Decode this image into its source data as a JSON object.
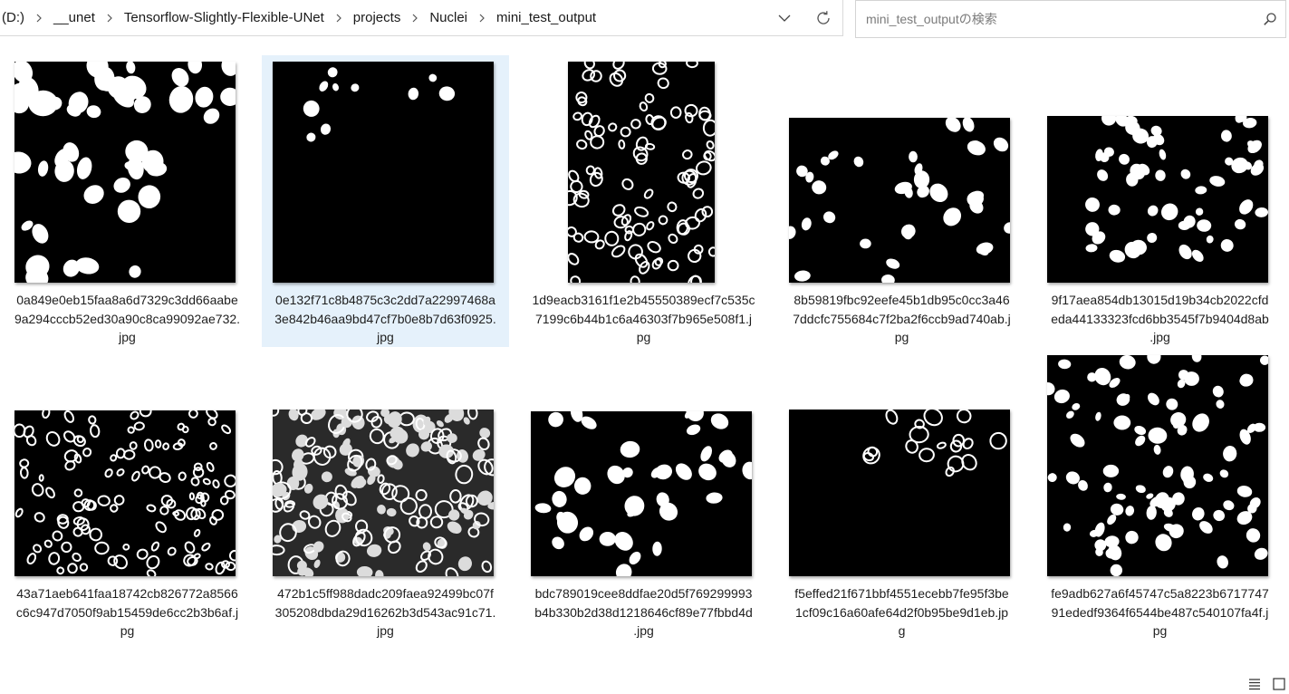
{
  "breadcrumb": {
    "items": [
      "(D:)",
      "__unet",
      "Tensorflow-Slightly-Flexible-UNet",
      "projects",
      "Nuclei",
      "mini_test_output"
    ]
  },
  "search": {
    "placeholder": "mini_test_outputの検索"
  },
  "files": [
    {
      "name": "0a849e0eb15faa8a6d7329c3dd66aabe9a294cccb52ed30a90c8ca99092ae732.jpg",
      "caption": [
        "0a849e0eb15faa8a6d7329c3dd66aabe",
        "9a294cccb52ed30a90c8ca99092ae732.",
        "jpg"
      ],
      "selected": false
    },
    {
      "name": "0e132f71c8b4875c3c2dd7a22997468a3e842b46aa9bd47cf7b0e8b7d63f0925.jpg",
      "caption": [
        "0e132f71c8b4875c3c2dd7a22997468a",
        "3e842b46aa9bd47cf7b0e8b7d63f0925.",
        "jpg"
      ],
      "selected": true
    },
    {
      "name": "1d9eacb3161f1e2b45550389ecf7c535c7199c6b44b1c6a46303f7b965e508f1.jpg",
      "caption": [
        "1d9eacb3161f1e2b45550389ecf7c535c",
        "7199c6b44b1c6a46303f7b965e508f1.j",
        "pg"
      ],
      "selected": false
    },
    {
      "name": "8b59819fbc92eefe45b1db95c0cc3a467ddcfc755684c7f2ba2f6ccb9ad740ab.jpg",
      "caption": [
        "8b59819fbc92eefe45b1db95c0cc3a46",
        "7ddcfc755684c7f2ba2f6ccb9ad740ab.j",
        "pg"
      ],
      "selected": false
    },
    {
      "name": "9f17aea854db13015d19b34cb2022cfdeda44133323fcd6bb3545f7b9404d8ab.jpg",
      "caption": [
        "9f17aea854db13015d19b34cb2022cfd",
        "eda44133323fcd6bb3545f7b9404d8ab",
        ".jpg"
      ],
      "selected": false
    },
    {
      "name": "43a71aeb641faa18742cb826772a8566c6c947d7050f9ab15459de6cc2b3b6af.jpg",
      "caption": [
        "43a71aeb641faa18742cb826772a8566",
        "c6c947d7050f9ab15459de6cc2b3b6af.j",
        "pg"
      ],
      "selected": false
    },
    {
      "name": "472b1c5ff988dadc209faea92499bc07f305208dbda29d16262b3d543ac91c71.jpg",
      "caption": [
        "472b1c5ff988dadc209faea92499bc07f",
        "305208dbda29d16262b3d543ac91c71.",
        "jpg"
      ],
      "selected": false
    },
    {
      "name": "bdc789019cee8ddfae20d5f769299993b4b330b2d38d1218646cf89e77fbbd4d.jpg",
      "caption": [
        "bdc789019cee8ddfae20d5f769299993",
        "b4b330b2d38d1218646cf89e77fbbd4d",
        ".jpg"
      ],
      "selected": false
    },
    {
      "name": "f5effed21f671bbf4551ecebb7fe95f3be1cf09c16a60afe64d2f0b95be9d1eb.jpg",
      "caption": [
        "f5effed21f671bbf4551ecebb7fe95f3be",
        "1cf09c16a60afe64d2f0b95be9d1eb.jp",
        "g"
      ],
      "selected": false
    },
    {
      "name": "fe9adb627a6f45747c5a8223b671774791ededf9364f6544be487c540107fa4f.jpg",
      "caption": [
        "fe9adb627a6f45747c5a8223b6717747",
        "91ededf9364f6544be487c540107fa4f.j",
        "pg"
      ],
      "selected": false
    }
  ],
  "colors": {
    "selection": "#e5f1fb",
    "thumbnail_background": "#000000",
    "nucleus": "#ffffff"
  },
  "icons": {
    "breadcrumb_separator": "chevron-right-icon",
    "history_dropdown": "chevron-down-icon",
    "refresh": "refresh-icon",
    "search": "search-icon",
    "details_view": "details-view-icon",
    "large_icons_view": "large-icons-view-icon"
  }
}
